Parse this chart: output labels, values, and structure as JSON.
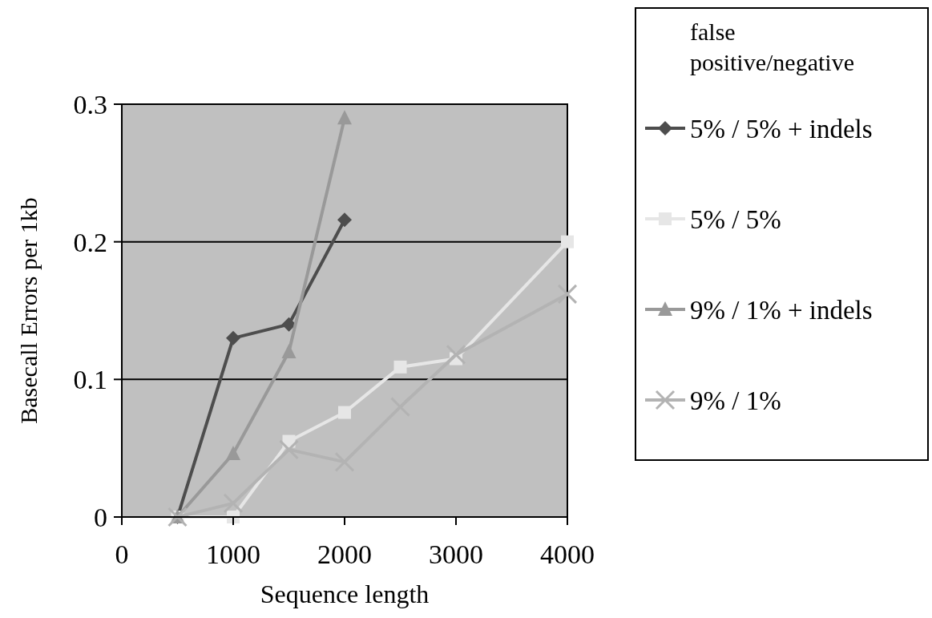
{
  "chart_data": {
    "type": "line",
    "xlabel": "Sequence length",
    "ylabel": "Basecall Errors per 1kb",
    "legend_title": "false positive/negative",
    "xlim": [
      0,
      4000
    ],
    "xticks": [
      0,
      1000,
      2000,
      3000,
      4000
    ],
    "ylim": [
      0,
      0.3
    ],
    "yticks": [
      0,
      0.1,
      0.2,
      0.3
    ],
    "grid": "y",
    "legend": "right",
    "series": [
      {
        "name": "5% / 5% + indels",
        "color": "#4d4d4d",
        "marker": "diamond",
        "x": [
          500,
          1000,
          1500,
          2000
        ],
        "values": [
          0,
          0.13,
          0.14,
          0.216
        ]
      },
      {
        "name": "5% / 5%",
        "color": "#e6e6e6",
        "marker": "square",
        "x": [
          500,
          1000,
          1500,
          2000,
          2500,
          3000,
          4000
        ],
        "values": [
          0,
          0,
          0.055,
          0.076,
          0.109,
          0.115,
          0.2
        ]
      },
      {
        "name": "9% / 1% + indels",
        "color": "#999999",
        "marker": "triangle",
        "x": [
          500,
          1000,
          1500,
          2000
        ],
        "values": [
          0,
          0.046,
          0.12,
          0.29
        ]
      },
      {
        "name": "9% / 1%",
        "color": "#b3b3b3",
        "marker": "cross",
        "x": [
          500,
          1000,
          1500,
          2000,
          2500,
          3000,
          4000
        ],
        "values": [
          0,
          0.01,
          0.049,
          0.04,
          0.08,
          0.118,
          0.162
        ]
      }
    ]
  }
}
